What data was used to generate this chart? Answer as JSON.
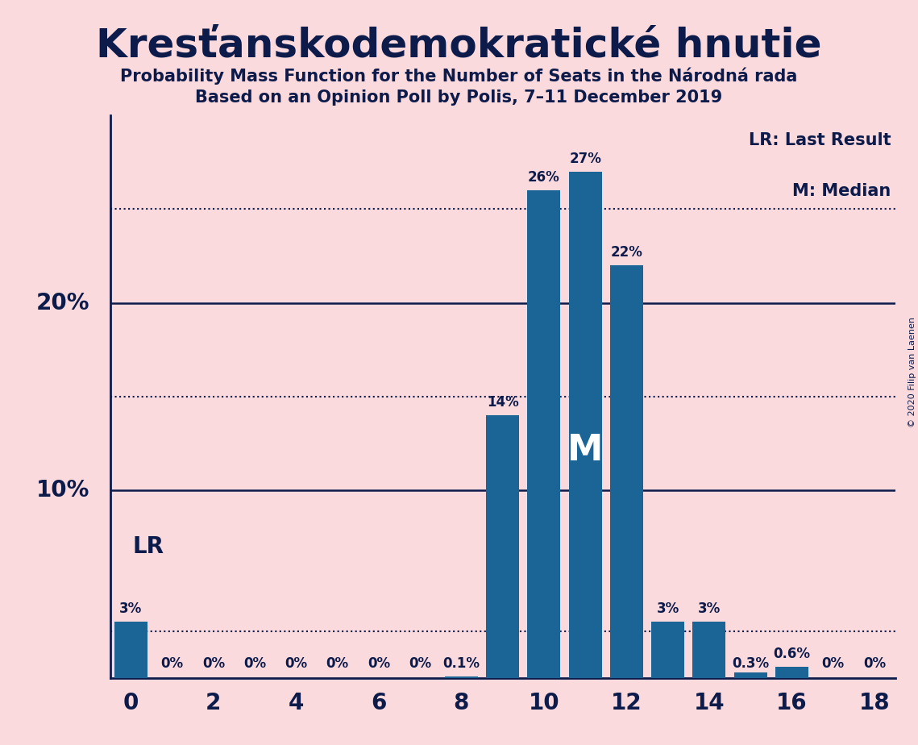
{
  "title": "Kresťanskodemokratické hnutie",
  "subtitle1": "Probability Mass Function for the Number of Seats in the Národná rada",
  "subtitle2": "Based on an Opinion Poll by Polis, 7–11 December 2019",
  "copyright": "© 2020 Filip van Laenen",
  "seats": [
    0,
    1,
    2,
    3,
    4,
    5,
    6,
    7,
    8,
    9,
    10,
    11,
    12,
    13,
    14,
    15,
    16,
    17,
    18
  ],
  "probabilities": [
    0.03,
    0.0,
    0.0,
    0.0,
    0.0,
    0.0,
    0.0,
    0.0,
    0.001,
    0.14,
    0.26,
    0.27,
    0.22,
    0.03,
    0.03,
    0.003,
    0.006,
    0.0,
    0.0
  ],
  "bar_labels": [
    "3%",
    "0%",
    "0%",
    "0%",
    "0%",
    "0%",
    "0%",
    "0%",
    "0.1%",
    "14%",
    "26%",
    "27%",
    "22%",
    "3%",
    "3%",
    "0.3%",
    "0.6%",
    "0%",
    "0%"
  ],
  "bar_color": "#1a6496",
  "background_color": "#fadadd",
  "text_color": "#0d1b4b",
  "last_result_seat": 0,
  "median_seat": 11,
  "solid_lines": [
    0.1,
    0.2
  ],
  "dotted_lines": [
    0.025,
    0.15,
    0.25
  ],
  "xlim": [
    -0.5,
    18.5
  ],
  "ylim": [
    0,
    0.3
  ],
  "legend_lr": "LR: Last Result",
  "legend_m": "M: Median",
  "lr_label": "LR",
  "m_label": "M"
}
